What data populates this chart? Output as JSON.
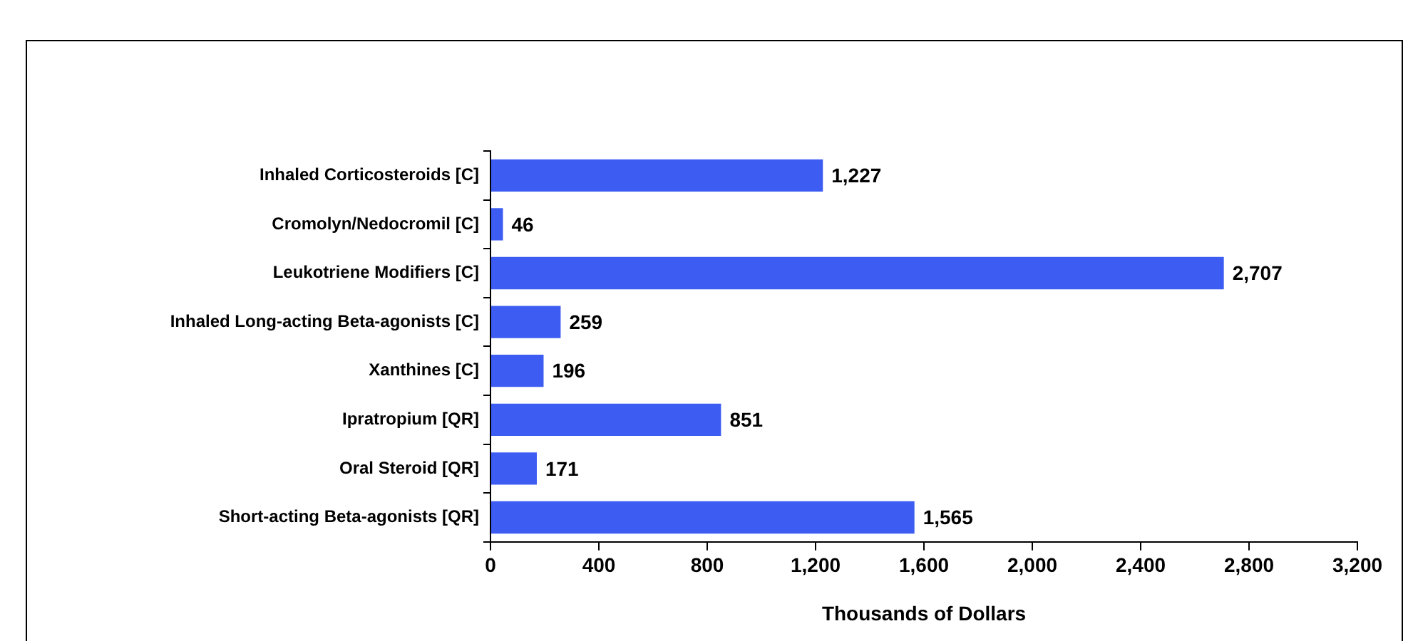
{
  "chart_data": {
    "type": "bar",
    "orientation": "horizontal",
    "xlabel": "Thousands of Dollars",
    "categories": [
      "Inhaled Corticosteroids [C]",
      "Cromolyn/Nedocromil [C]",
      "Leukotriene Modifiers [C]",
      "Inhaled Long-acting Beta-agonists [C]",
      "Xanthines [C]",
      "Ipratropium [QR]",
      "Oral Steroid [QR]",
      "Short-acting Beta-agonists [QR]"
    ],
    "values": [
      1227,
      46,
      2707,
      259,
      196,
      851,
      171,
      1565
    ],
    "value_labels": [
      "1,227",
      "46",
      "2,707",
      "259",
      "196",
      "851",
      "171",
      "1,565"
    ],
    "color": "#3c5cf2",
    "xlim": [
      0,
      3200
    ],
    "xticks": [
      {
        "value": 0,
        "label": "0"
      },
      {
        "value": 400,
        "label": "400"
      },
      {
        "value": 800,
        "label": "800"
      },
      {
        "value": 1200,
        "label": "1,200"
      },
      {
        "value": 1600,
        "label": "1,600"
      },
      {
        "value": 2000,
        "label": "2,000"
      },
      {
        "value": 2400,
        "label": "2,400"
      },
      {
        "value": 2800,
        "label": "2,800"
      },
      {
        "value": 3200,
        "label": "3,200"
      }
    ],
    "grid": false,
    "legend": false
  }
}
